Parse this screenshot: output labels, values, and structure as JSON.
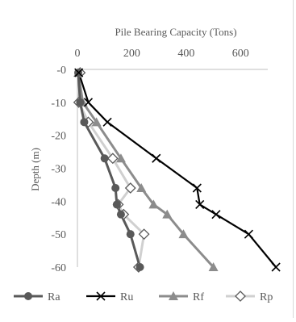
{
  "chart_data": {
    "type": "line",
    "title": "",
    "xlabel": "Pile Bearing Capacity (Tons)",
    "ylabel": "Depth (m)",
    "xlim": [
      0,
      700
    ],
    "ylim": [
      -60,
      0
    ],
    "x_ticks": [
      "0",
      "200",
      "400",
      "600"
    ],
    "y_ticks": [
      "-0",
      "-10",
      "-20",
      "-30",
      "-40",
      "-50",
      "-60"
    ],
    "x_axis_position": "top",
    "grid": false,
    "legend_position": "bottom",
    "series": [
      {
        "name": "Ra",
        "color": "#595959",
        "marker": "circle",
        "points": [
          {
            "x": 3,
            "depth": -1
          },
          {
            "x": 10,
            "depth": -10
          },
          {
            "x": 25,
            "depth": -16
          },
          {
            "x": 100,
            "depth": -27
          },
          {
            "x": 140,
            "depth": -36
          },
          {
            "x": 145,
            "depth": -41
          },
          {
            "x": 160,
            "depth": -44
          },
          {
            "x": 195,
            "depth": -50
          },
          {
            "x": 230,
            "depth": -60
          }
        ]
      },
      {
        "name": "Ru",
        "color": "#000000",
        "marker": "x",
        "points": [
          {
            "x": 5,
            "depth": -1
          },
          {
            "x": 40,
            "depth": -10
          },
          {
            "x": 110,
            "depth": -16
          },
          {
            "x": 290,
            "depth": -27
          },
          {
            "x": 440,
            "depth": -36
          },
          {
            "x": 450,
            "depth": -41
          },
          {
            "x": 510,
            "depth": -44
          },
          {
            "x": 630,
            "depth": -50
          },
          {
            "x": 730,
            "depth": -60
          }
        ]
      },
      {
        "name": "Rf",
        "color": "#8c8c8c",
        "marker": "triangle",
        "points": [
          {
            "x": 3,
            "depth": -1
          },
          {
            "x": 20,
            "depth": -10
          },
          {
            "x": 70,
            "depth": -16
          },
          {
            "x": 160,
            "depth": -27
          },
          {
            "x": 235,
            "depth": -36
          },
          {
            "x": 280,
            "depth": -41
          },
          {
            "x": 330,
            "depth": -44
          },
          {
            "x": 390,
            "depth": -50
          },
          {
            "x": 500,
            "depth": -60
          }
        ]
      },
      {
        "name": "Rp",
        "color": "#c8c8c8",
        "marker": "diamond",
        "points": [
          {
            "x": 10,
            "depth": -1
          },
          {
            "x": 5,
            "depth": -10
          },
          {
            "x": 40,
            "depth": -16
          },
          {
            "x": 130,
            "depth": -27
          },
          {
            "x": 195,
            "depth": -36
          },
          {
            "x": 150,
            "depth": -41
          },
          {
            "x": 170,
            "depth": -44
          },
          {
            "x": 245,
            "depth": -50
          },
          {
            "x": 225,
            "depth": -60
          }
        ]
      }
    ]
  }
}
